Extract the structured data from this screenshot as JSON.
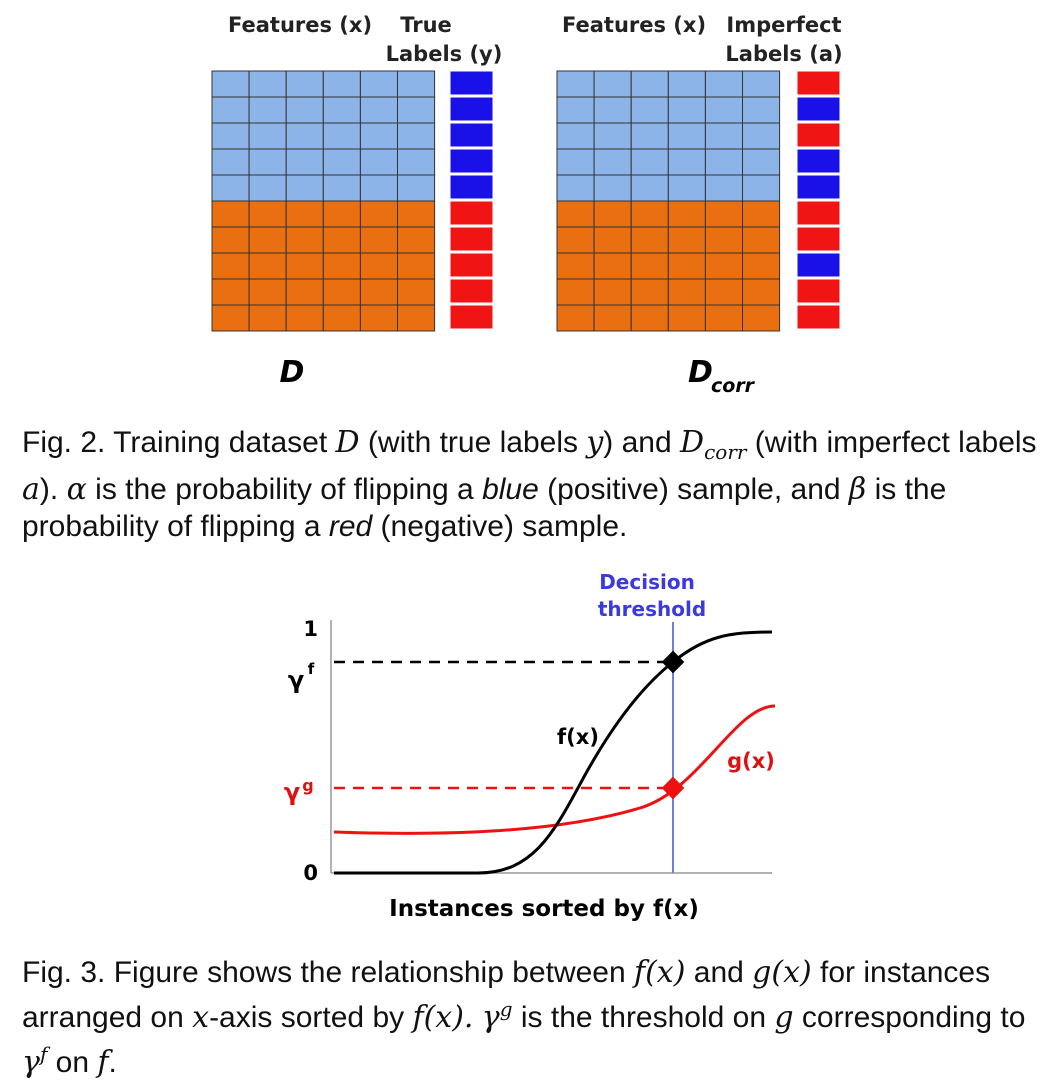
{
  "fig2": {
    "left": {
      "header_features": "Features (x)",
      "header_labels_1": "True",
      "header_labels_2": "Labels (y)",
      "name": "D"
    },
    "right": {
      "header_features": "Features (x)",
      "header_labels_1": "Imperfect",
      "header_labels_2": "Labels (a)",
      "name": "D",
      "name_sub": "corr"
    },
    "grid": {
      "rows": 10,
      "cols": 6,
      "top_rows_blue": 5
    },
    "colors": {
      "light_blue": "#8db4e8",
      "orange": "#ea6f10",
      "blue_label": "#1a10e8",
      "red_label": "#f01414",
      "grid_line": "#333333"
    },
    "true_labels": [
      "blue",
      "blue",
      "blue",
      "blue",
      "blue",
      "red",
      "red",
      "red",
      "red",
      "red"
    ],
    "imperfect_labels": [
      "red",
      "blue",
      "red",
      "blue",
      "blue",
      "red",
      "red",
      "blue",
      "red",
      "red"
    ],
    "caption": {
      "p1": "Fig. 2. Training dataset ",
      "m1": "D",
      "p2": " (with true labels ",
      "m2": "y",
      "p3": ") and ",
      "m3": "D",
      "m3sub": "corr",
      "p4": " (with imperfect labels ",
      "m4": "a",
      "p5": "). ",
      "m5": "α",
      "p6": " is the probability of flipping a ",
      "e1": "blue",
      "p7": " (positive) sample, and ",
      "m6": "β",
      "p8": " is the probability of flipping a ",
      "e2": "red",
      "p9": " (negative) sample."
    }
  },
  "fig3": {
    "threshold_label_1": "Decision",
    "threshold_label_2": "threshold",
    "y_one": "1",
    "y_zero": "0",
    "gamma_f": "γ",
    "gamma_f_sup": "f",
    "gamma_g": "γ",
    "gamma_g_sup": "g",
    "f_label": "f(x)",
    "g_label": "g(x)",
    "xlabel": "Instances sorted by f(x)",
    "colors": {
      "f_curve": "#000000",
      "g_curve": "#ee1111",
      "threshold": "#6f7fe0",
      "threshold_text": "#3a3ae0",
      "gamma_g_text": "#dd1111"
    },
    "caption": {
      "p1": "Fig. 3. Figure shows the relationship between ",
      "m1": "f(x)",
      "p2": " and ",
      "m2": "g(x)",
      "p3": " for instances arranged on ",
      "m3": "x",
      "p4": "-axis sorted by ",
      "m4": "f(x).",
      "p5": " ",
      "m5": "γ",
      "m5sup": "g",
      "p6": " is the threshold on ",
      "m6": "g",
      "p7": " corresponding to ",
      "m7": "γ",
      "m7sup": "f",
      "p8": " on ",
      "m8": "f",
      "p9": "."
    }
  }
}
